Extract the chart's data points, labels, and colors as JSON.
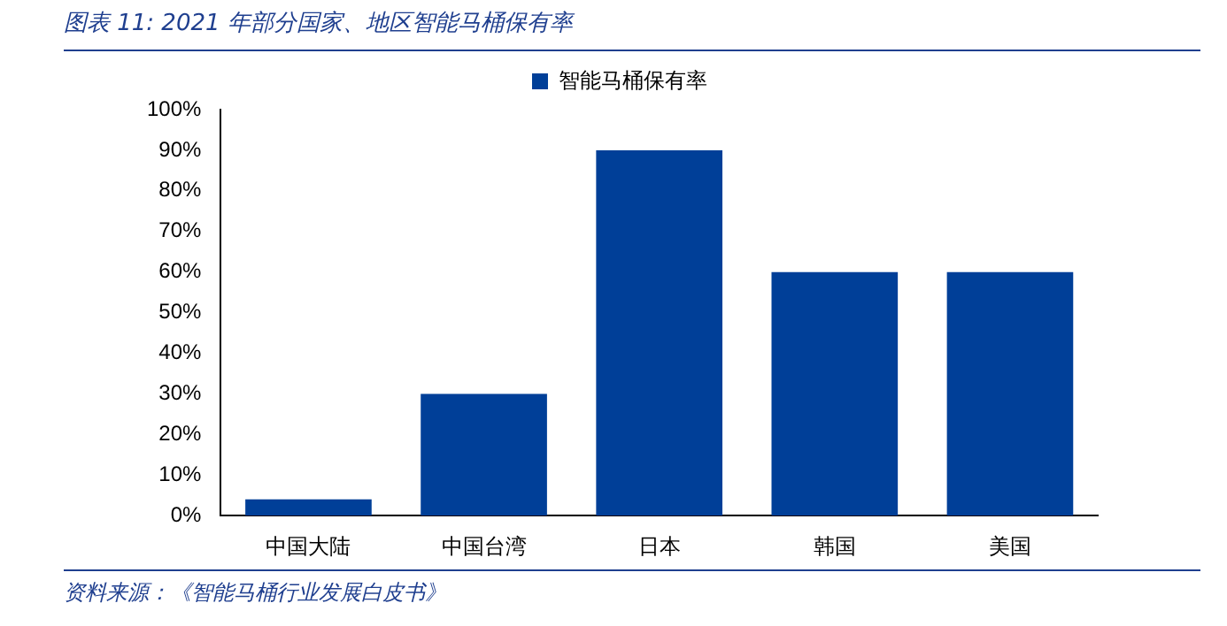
{
  "chart_data": {
    "type": "bar",
    "title": "图表 11: 2021 年部分国家、地区智能马桶保有率",
    "categories": [
      "中国大陆",
      "中国台湾",
      "日本",
      "韩国",
      "美国"
    ],
    "series": [
      {
        "name": "智能马桶保有率",
        "color": "#003f98",
        "values": [
          4,
          30,
          90,
          60,
          60
        ]
      }
    ],
    "ylim": [
      0,
      100
    ],
    "yticks": [
      {
        "value": 0,
        "label": "0%"
      },
      {
        "value": 10,
        "label": "10%"
      },
      {
        "value": 20,
        "label": "20%"
      },
      {
        "value": 30,
        "label": "30%"
      },
      {
        "value": 40,
        "label": "40%"
      },
      {
        "value": 50,
        "label": "50%"
      },
      {
        "value": 60,
        "label": "60%"
      },
      {
        "value": 70,
        "label": "70%"
      },
      {
        "value": 80,
        "label": "80%"
      },
      {
        "value": 90,
        "label": "90%"
      },
      {
        "value": 100,
        "label": "100%"
      }
    ],
    "grid": false,
    "legend": "top",
    "annotations": [
      "资料来源：《智能马桶行业发展白皮书》"
    ]
  }
}
